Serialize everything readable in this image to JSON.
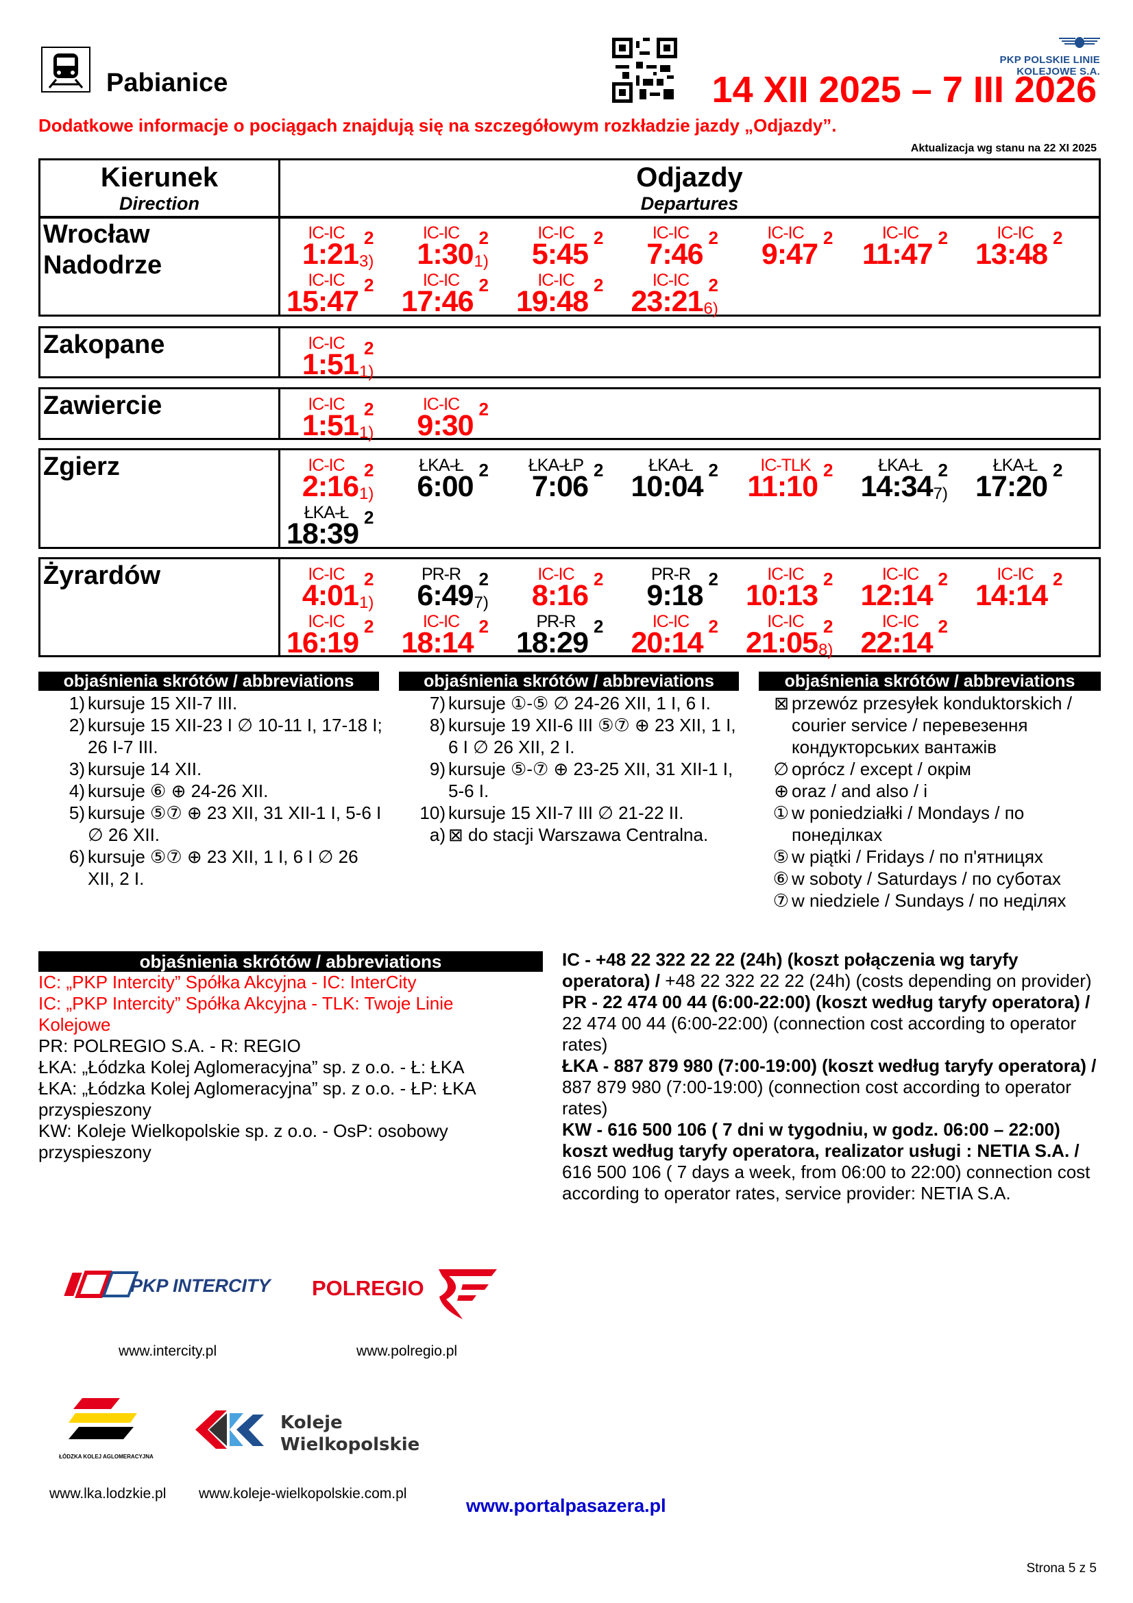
{
  "header": {
    "station": "Pabianice",
    "period": "14 XII 2025 – 7 III 2026",
    "info": "Dodatkowe informacje o pociągach znajdują się na szczegółowym rozkładzie jazdy „Odjazdy”.",
    "update": "Aktualizacja wg stanu na 22 XI 2025",
    "plk_logo_text": "PKP POLSKIE LINIE KOLEJOWE S.A."
  },
  "table": {
    "direction_title": "Kierunek",
    "direction_sub": "Direction",
    "departures_title": "Odjazdy",
    "departures_sub": "Departures",
    "red_color": "#ff0000",
    "stations": [
      {
        "name": "Wrocław Nadodrze",
        "trains": [
          {
            "type": "IC-IC",
            "time": "1:21",
            "note": "3)",
            "cls": "2",
            "red": true
          },
          {
            "type": "IC-IC",
            "time": "1:30",
            "note": "1)",
            "cls": "2",
            "red": true
          },
          {
            "type": "IC-IC",
            "time": "5:45",
            "note": "",
            "cls": "2",
            "red": true
          },
          {
            "type": "IC-IC",
            "time": "7:46",
            "note": "",
            "cls": "2",
            "red": true
          },
          {
            "type": "IC-IC",
            "time": "9:47",
            "note": "",
            "cls": "2",
            "red": true
          },
          {
            "type": "IC-IC",
            "time": "11:47",
            "note": "",
            "cls": "2",
            "red": true
          },
          {
            "type": "IC-IC",
            "time": "13:48",
            "note": "",
            "cls": "2",
            "red": true
          },
          {
            "type": "IC-IC",
            "time": "15:47",
            "note": "",
            "cls": "2",
            "red": true
          },
          {
            "type": "IC-IC",
            "time": "17:46",
            "note": "",
            "cls": "2",
            "red": true
          },
          {
            "type": "IC-IC",
            "time": "19:48",
            "note": "",
            "cls": "2",
            "red": true
          },
          {
            "type": "IC-IC",
            "time": "23:21",
            "note": "6)",
            "cls": "2",
            "red": true
          }
        ]
      },
      {
        "name": "Zakopane",
        "trains": [
          {
            "type": "IC-IC",
            "time": "1:51",
            "note": "1)",
            "cls": "2",
            "red": true
          }
        ]
      },
      {
        "name": "Zawiercie",
        "trains": [
          {
            "type": "IC-IC",
            "time": "1:51",
            "note": "1)",
            "cls": "2",
            "red": true
          },
          {
            "type": "IC-IC",
            "time": "9:30",
            "note": "",
            "cls": "2",
            "red": true
          }
        ]
      },
      {
        "name": "Zgierz",
        "trains": [
          {
            "type": "IC-IC",
            "time": "2:16",
            "note": "1)",
            "cls": "2",
            "red": true
          },
          {
            "type": "ŁKA-Ł",
            "time": "6:00",
            "note": "",
            "cls": "2",
            "red": false
          },
          {
            "type": "ŁKA-ŁP",
            "time": "7:06",
            "note": "",
            "cls": "2",
            "red": false
          },
          {
            "type": "ŁKA-Ł",
            "time": "10:04",
            "note": "",
            "cls": "2",
            "red": false
          },
          {
            "type": "IC-TLK",
            "time": "11:10",
            "note": "",
            "cls": "2",
            "red": true
          },
          {
            "type": "ŁKA-Ł",
            "time": "14:34",
            "note": "7)",
            "cls": "2",
            "red": false
          },
          {
            "type": "ŁKA-Ł",
            "time": "17:20",
            "note": "",
            "cls": "2",
            "red": false
          },
          {
            "type": "ŁKA-Ł",
            "time": "18:39",
            "note": "",
            "cls": "2",
            "red": false
          }
        ]
      },
      {
        "name": "Żyrardów",
        "trains": [
          {
            "type": "IC-IC",
            "time": "4:01",
            "note": "1)",
            "cls": "2",
            "red": true
          },
          {
            "type": "PR-R",
            "time": "6:49",
            "note": "7)",
            "cls": "2",
            "red": false
          },
          {
            "type": "IC-IC",
            "time": "8:16",
            "note": "",
            "cls": "2",
            "red": true
          },
          {
            "type": "PR-R",
            "time": "9:18",
            "note": "",
            "cls": "2",
            "red": false
          },
          {
            "type": "IC-IC",
            "time": "10:13",
            "note": "",
            "cls": "2",
            "red": true
          },
          {
            "type": "IC-IC",
            "time": "12:14",
            "note": "",
            "cls": "2",
            "red": true
          },
          {
            "type": "IC-IC",
            "time": "14:14",
            "note": "",
            "cls": "2",
            "red": true
          },
          {
            "type": "IC-IC",
            "time": "16:19",
            "note": "",
            "cls": "2",
            "red": true
          },
          {
            "type": "IC-IC",
            "time": "18:14",
            "note": "",
            "cls": "2",
            "red": true
          },
          {
            "type": "PR-R",
            "time": "18:29",
            "note": "",
            "cls": "2",
            "red": false
          },
          {
            "type": "IC-IC",
            "time": "20:14",
            "note": "",
            "cls": "2",
            "red": true
          },
          {
            "type": "IC-IC",
            "time": "21:05",
            "note": "8)",
            "cls": "2",
            "red": true
          },
          {
            "type": "IC-IC",
            "time": "22:14",
            "note": "",
            "cls": "2",
            "red": true
          }
        ]
      }
    ]
  },
  "abbreviations": {
    "heading": "objaśnienia skrótów / abbreviations",
    "columns": [
      [
        {
          "n": "1)",
          "text": "kursuje 15 XII-7 III."
        },
        {
          "n": "2)",
          "text": "kursuje 15 XII-23 I ∅ 10-11 I, 17-18 I; 26 I-7 III."
        },
        {
          "n": "3)",
          "text": "kursuje 14 XII."
        },
        {
          "n": "4)",
          "text": "kursuje ⑥ ⊕ 24-26 XII."
        },
        {
          "n": "5)",
          "text": "kursuje ⑤⑦ ⊕ 23 XII, 31 XII-1 I, 5-6 I ∅ 26 XII."
        },
        {
          "n": "6)",
          "text": "kursuje ⑤⑦ ⊕ 23 XII, 1 I, 6 I ∅ 26 XII, 2 I."
        }
      ],
      [
        {
          "n": "7)",
          "text": "kursuje ①-⑤ ∅ 24-26 XII, 1 I, 6 I."
        },
        {
          "n": "8)",
          "text": "kursuje 19 XII-6 III ⑤⑦ ⊕ 23 XII, 1 I, 6 I ∅ 26 XII, 2 I."
        },
        {
          "n": "9)",
          "text": "kursuje ⑤-⑦ ⊕ 23-25 XII, 31 XII-1 I, 5-6 I."
        },
        {
          "n": "10)",
          "text": "kursuje 15 XII-7 III ∅ 21-22 II."
        },
        {
          "n": "a)",
          "text": "⊠ do stacji Warszawa Centralna."
        }
      ],
      [
        {
          "n": "⊠",
          "text": "przewóz przesyłek konduktorskich / courier service / перевезення кондукторських вантажів"
        },
        {
          "n": "∅",
          "text": "oprócz / except / окрім"
        },
        {
          "n": "⊕",
          "text": "oraz / and also / і"
        },
        {
          "n": "①",
          "text": "w poniedziałki / Mondays / по понеділках"
        },
        {
          "n": "⑤",
          "text": "w piątki / Fridays / по п'ятницях"
        },
        {
          "n": "⑥",
          "text": "w soboty / Saturdays / по суботах"
        },
        {
          "n": "⑦",
          "text": "w niedziele / Sundays / по неділях"
        }
      ]
    ]
  },
  "operators": {
    "heading": "objaśnienia skrótów / abbreviations",
    "items": [
      {
        "text": "IC: „PKP Intercity” Spółka Akcyjna - IC: InterCity",
        "red": true
      },
      {
        "text": "IC: „PKP Intercity” Spółka Akcyjna - TLK: Twoje Linie Kolejowe",
        "red": true
      },
      {
        "text": "PR: POLREGIO S.A. - R: REGIO",
        "red": false
      },
      {
        "text": "ŁKA: „Łódzka Kolej Aglomeracyjna” sp. z o.o. - Ł: ŁKA",
        "red": false
      },
      {
        "text": "ŁKA: „Łódzka Kolej Aglomeracyjna” sp. z o.o. - ŁP: ŁKA przyspieszony",
        "red": false
      },
      {
        "text": "KW: Koleje Wielkopolskie sp. z o.o. - OsP: osobowy przyspieszony",
        "red": false
      }
    ]
  },
  "contacts": [
    {
      "bold": "IC - +48 22 322 22 22 (24h) (koszt połączenia wg taryfy operatora) /",
      "normal": " +48 22 322 22 22 (24h) (costs depending on provider)"
    },
    {
      "bold": "PR - 22 474 00 44 (6:00-22:00) (koszt według taryfy operatora) /",
      "normal": " 22 474 00 44 (6:00-22:00) (connection cost according to operator rates)"
    },
    {
      "bold": "ŁKA - 887 879 980 (7:00-19:00) (koszt według taryfy operatora) /",
      "normal": " 887 879 980 (7:00-19:00) (connection cost according to operator rates)"
    },
    {
      "bold": "KW - 616 500 106 ( 7 dni w tygodniu, w godz. 06:00 – 22:00) koszt według taryfy operatora, realizator usługi : NETIA S.A. /",
      "normal": " 616 500 106 ( 7 days a week, from 06:00 to 22:00) connection cost according to operator rates, service provider: NETIA S.A."
    }
  ],
  "logos": {
    "intercity_text": "PKP INTERCITY",
    "intercity_url": "www.intercity.pl",
    "polregio_text": "POLREGIO",
    "polregio_url": "www.polregio.pl",
    "lka_text": "ŁÓDZKA KOLEJ AGLOMERACYJNA",
    "lka_url": "www.lka.lodzkie.pl",
    "kw_text_1": "Koleje",
    "kw_text_2": "Wielkopolskie",
    "kw_url": "www.koleje-wielkopolskie.com.pl",
    "portal_url": "www.portalpasazera.pl"
  },
  "footer": {
    "page": "Strona 5 z 5"
  }
}
